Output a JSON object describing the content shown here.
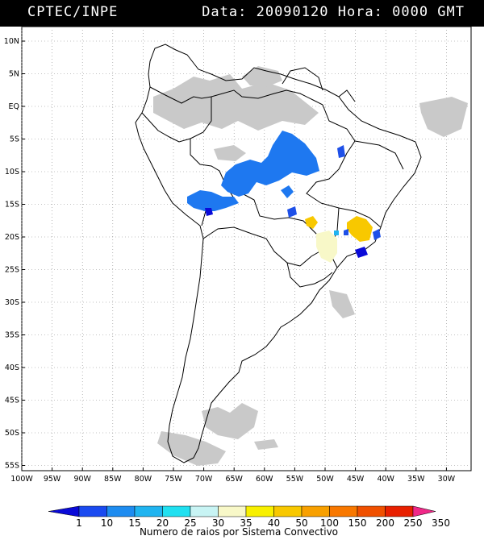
{
  "header": {
    "left": "CPTEC/INPE",
    "right": "Data: 20090120 Hora: 0000 GMT"
  },
  "axes": {
    "lat_labels": [
      "10N",
      "5N",
      "EQ",
      "5S",
      "10S",
      "15S",
      "20S",
      "25S",
      "30S",
      "35S",
      "40S",
      "45S",
      "50S",
      "55S"
    ],
    "lon_labels": [
      "100W",
      "95W",
      "90W",
      "85W",
      "80W",
      "75W",
      "70W",
      "65W",
      "60W",
      "55W",
      "50W",
      "45W",
      "40W",
      "35W",
      "30W"
    ]
  },
  "colorbar": {
    "labels": [
      "1",
      "10",
      "15",
      "20",
      "25",
      "30",
      "35",
      "40",
      "50",
      "100",
      "150",
      "200",
      "250",
      "350"
    ],
    "colors": [
      "#0a0ad8",
      "#1a4af0",
      "#1e8cf0",
      "#20b4f0",
      "#20e0f0",
      "#c8f4f4",
      "#f8f8c8",
      "#f8f000",
      "#f8c800",
      "#f8a000",
      "#f87800",
      "#f05000",
      "#e82000",
      "#f02888"
    ],
    "title": "Numero de raios por Sistema Convectivo"
  }
}
